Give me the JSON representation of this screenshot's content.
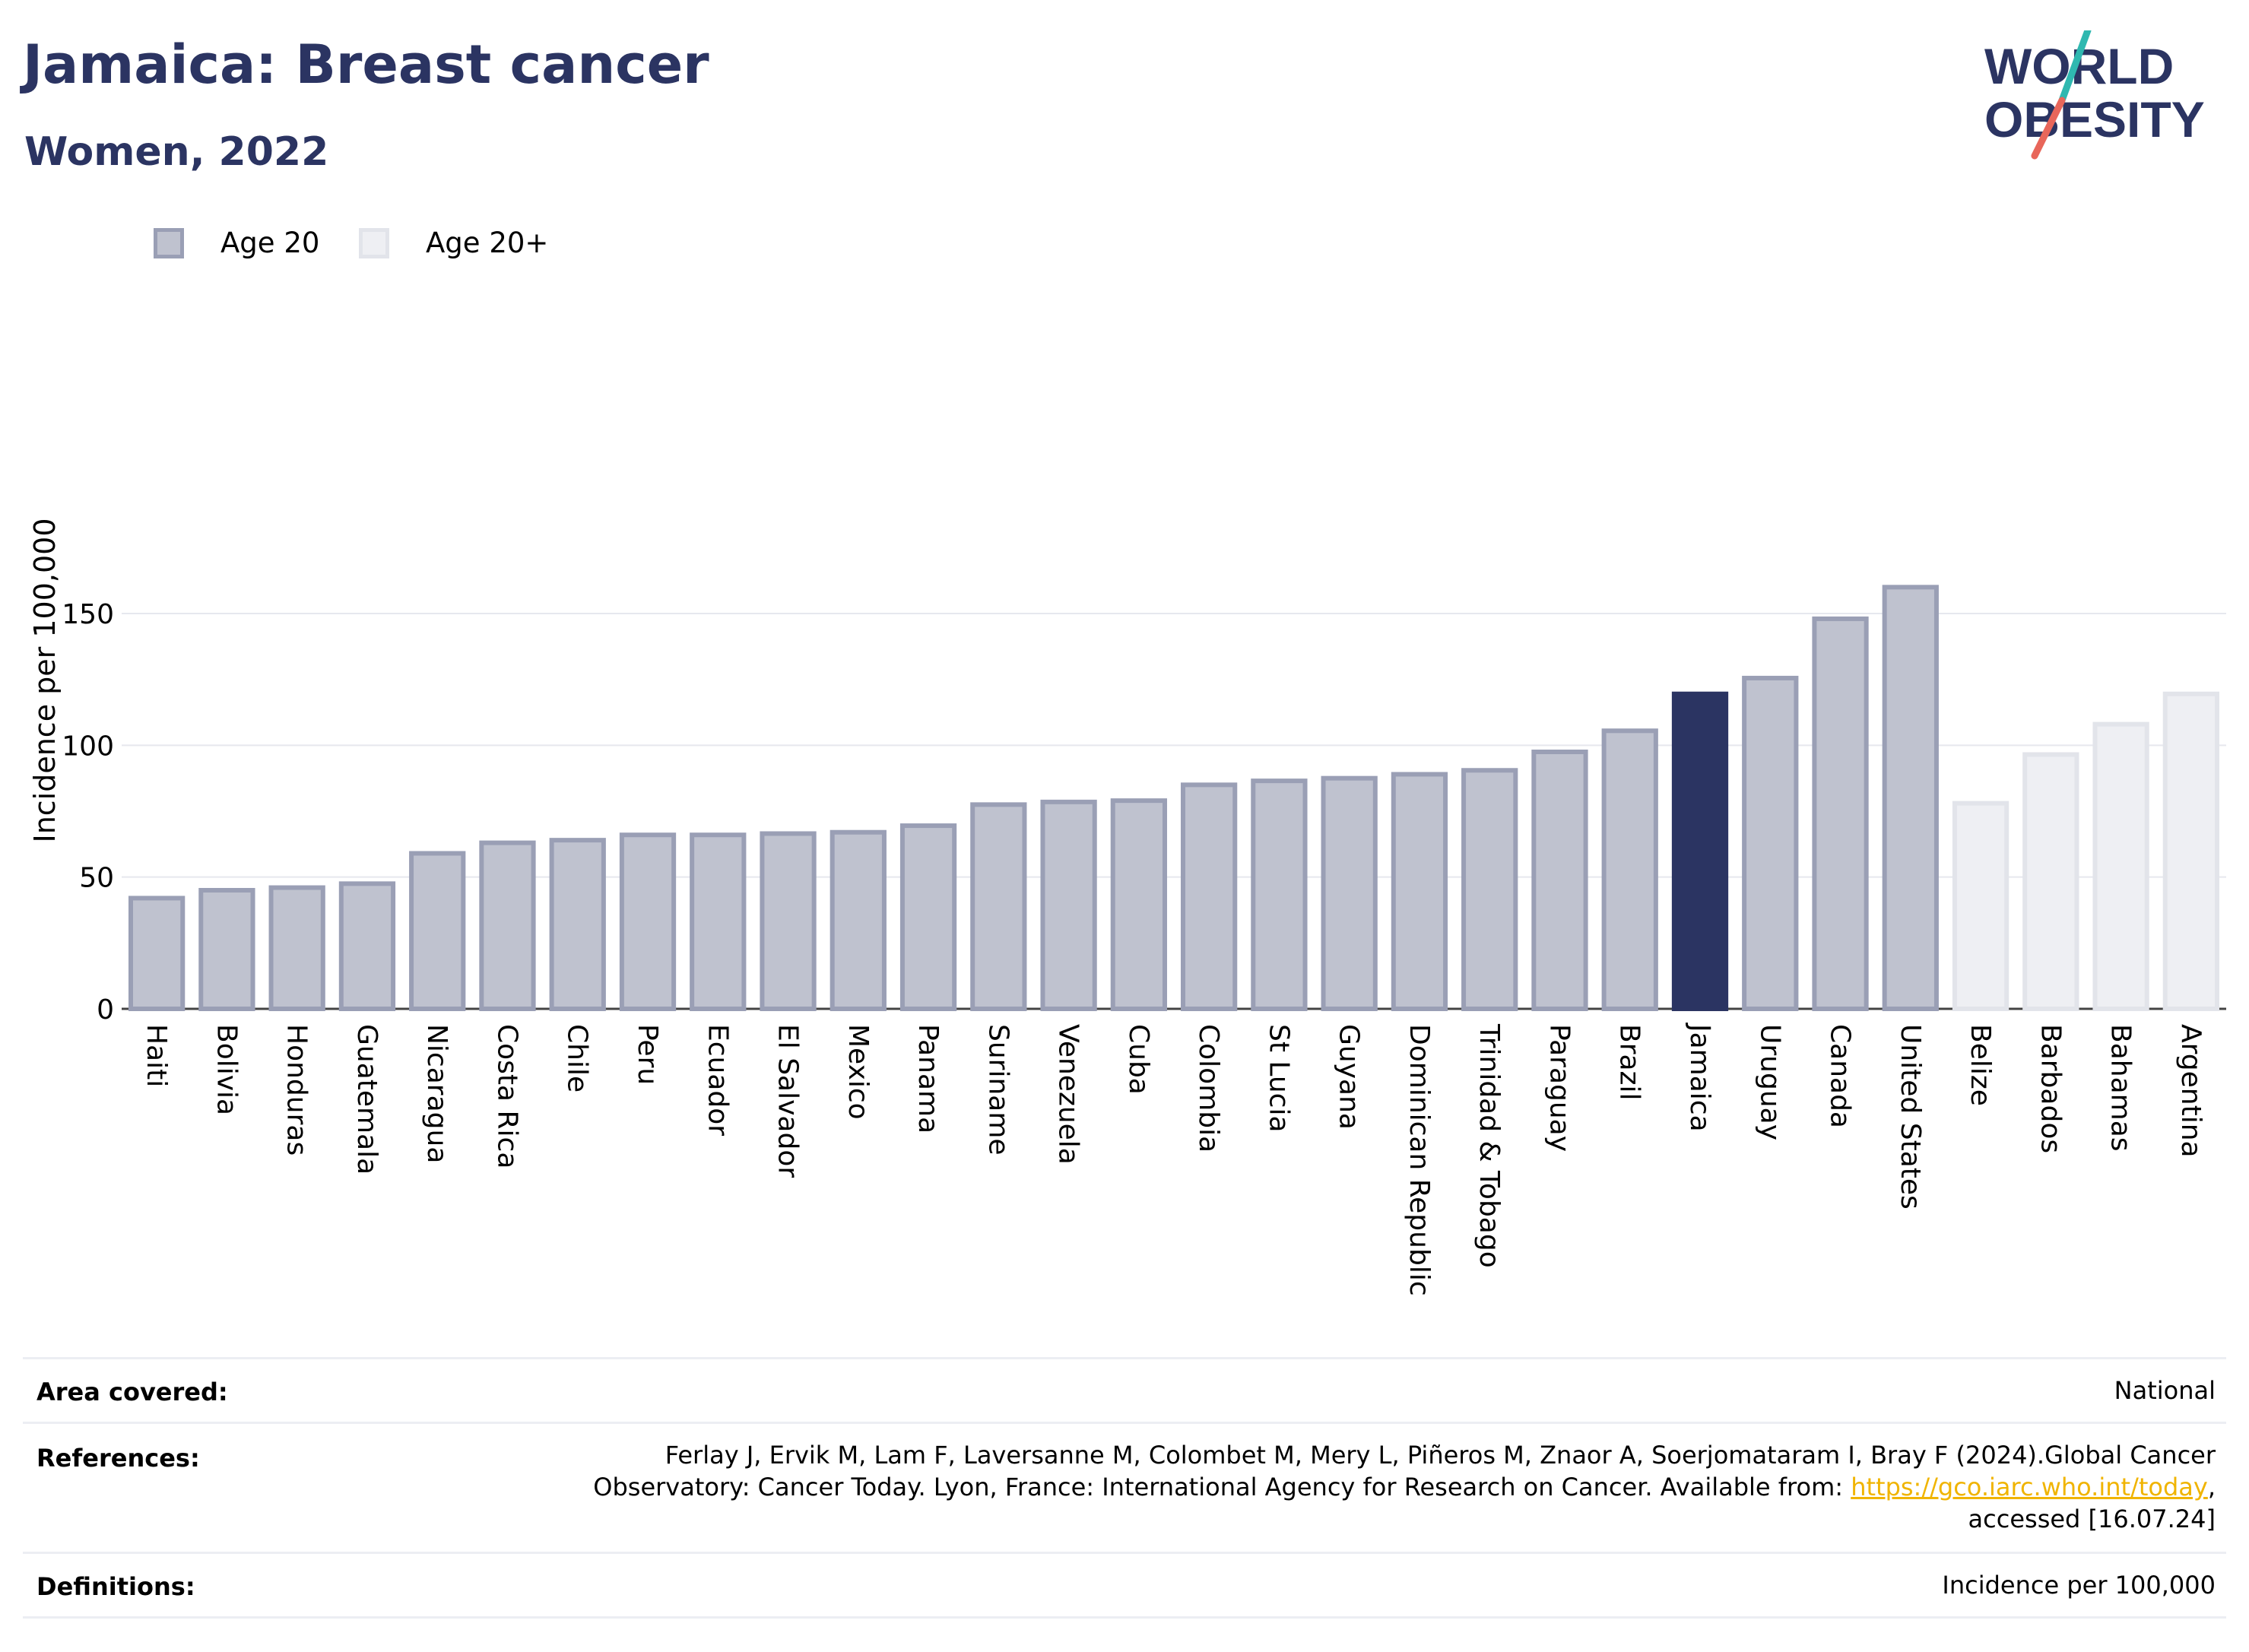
{
  "header": {
    "title": "Jamaica: Breast cancer",
    "subtitle": "Women, 2022"
  },
  "logo": {
    "line1": "WORLD",
    "line2": "OBESITY",
    "colors": {
      "text": "#2b3462",
      "slash_teal": "#2fb8b0",
      "slash_coral": "#e8665a"
    }
  },
  "legend": [
    {
      "label": "Age 20",
      "fill": "#bfc2cf",
      "stroke": "#9a9fb5"
    },
    {
      "label": "Age 20+",
      "fill": "#eeeff3",
      "stroke": "#e2e4ea"
    }
  ],
  "chart_data": {
    "type": "bar",
    "ylabel": "Incidence per 100,000",
    "ylim": [
      0,
      175
    ],
    "yticks": [
      0,
      50,
      100,
      150
    ],
    "grid": true,
    "categories": [
      "Haiti",
      "Bolivia",
      "Honduras",
      "Guatemala",
      "Nicaragua",
      "Costa Rica",
      "Chile",
      "Peru",
      "Ecuador",
      "El Salvador",
      "Mexico",
      "Panama",
      "Suriname",
      "Venezuela",
      "Cuba",
      "Colombia",
      "St Lucia",
      "Guyana",
      "Dominican Republic",
      "Trinidad & Tobago",
      "Paraguay",
      "Brazil",
      "Jamaica",
      "Uruguay",
      "Canada",
      "United States",
      "Belize",
      "Barbados",
      "Bahamas",
      "Argentina"
    ],
    "values": [
      42,
      45,
      46,
      47.5,
      59,
      63,
      64,
      66,
      66,
      66.5,
      67,
      69.5,
      77.5,
      78.5,
      79,
      85,
      86.5,
      87.5,
      89,
      90.5,
      97.5,
      105.5,
      119.5,
      125.5,
      148,
      160,
      78,
      96.5,
      108,
      119.5
    ],
    "group": [
      "Age 20",
      "Age 20",
      "Age 20",
      "Age 20",
      "Age 20",
      "Age 20",
      "Age 20",
      "Age 20",
      "Age 20",
      "Age 20",
      "Age 20",
      "Age 20",
      "Age 20",
      "Age 20",
      "Age 20",
      "Age 20",
      "Age 20",
      "Age 20",
      "Age 20",
      "Age 20",
      "Age 20",
      "Age 20",
      "Age 20",
      "Age 20",
      "Age 20",
      "Age 20",
      "Age 20+",
      "Age 20+",
      "Age 20+",
      "Age 20+"
    ],
    "highlight": "Jamaica",
    "highlight_color": "#2b3462"
  },
  "footer": {
    "area_label": "Area covered:",
    "area_value": "National",
    "references_label": "References:",
    "references_line1": "Ferlay J, Ervik M, Lam F, Laversanne M, Colombet M, Mery L, Piñeros M, Znaor A, Soerjomataram I, Bray F (2024).Global Cancer",
    "references_line2_pre": "Observatory: Cancer Today. Lyon, France: International Agency for Research on Cancer. Available from: ",
    "references_link": "https://gco.iarc.who.int/today",
    "references_line2_post": ",",
    "references_line3": "accessed [16.07.24]",
    "definitions_label": "Definitions:",
    "definitions_value": "Incidence per 100,000"
  }
}
